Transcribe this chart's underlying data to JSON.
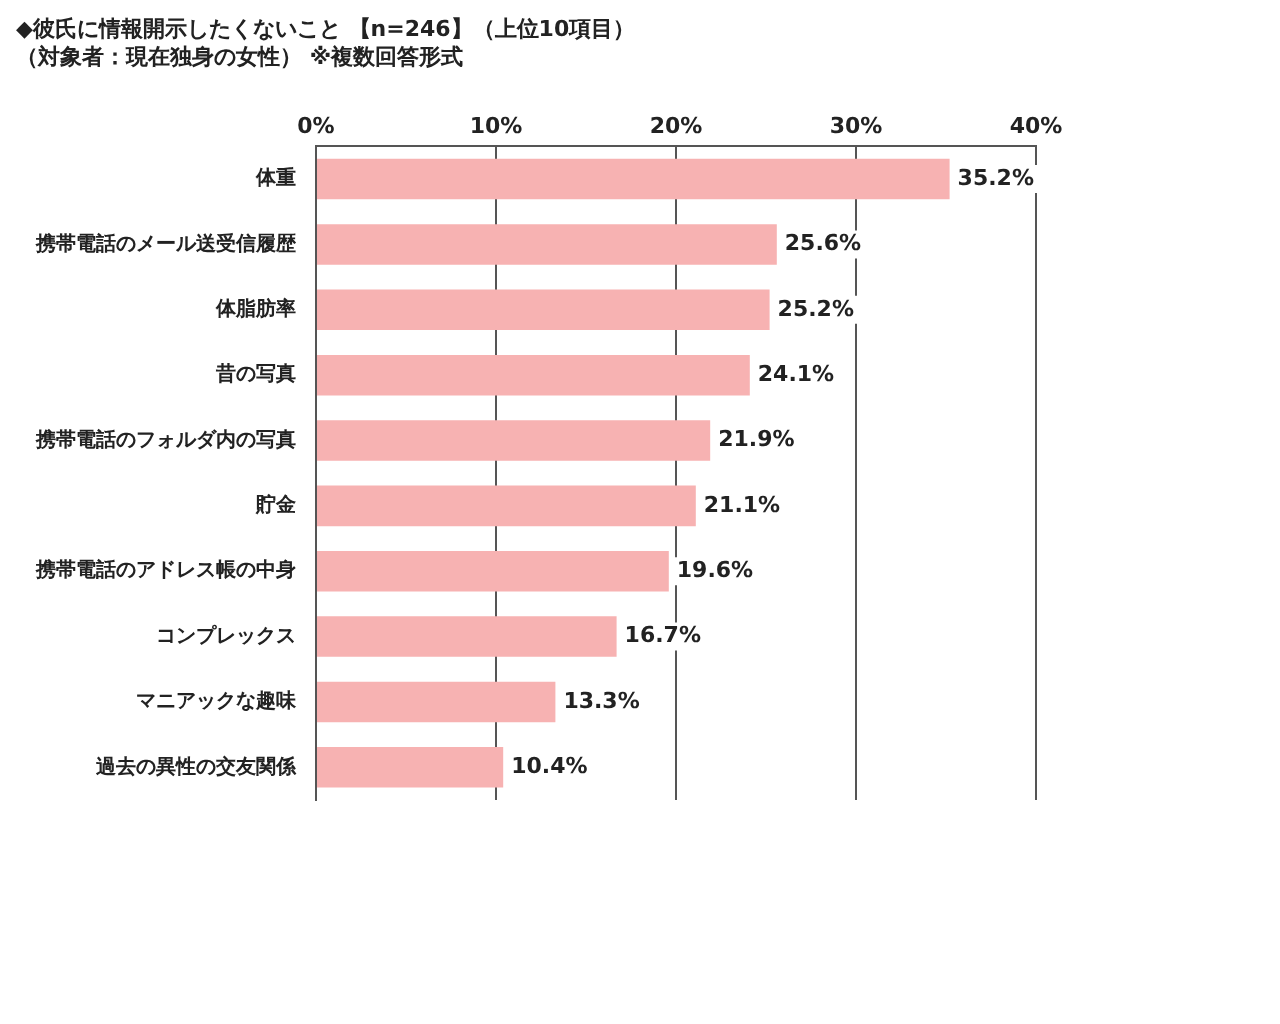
{
  "chart_data": {
    "type": "bar",
    "orientation": "horizontal",
    "title": "◆彼氏に情報開示したくないこと 【n=246】（上位10項目）",
    "subtitle": "（対象者：現在独身の女性） ※複数回答形式",
    "categories": [
      "体重",
      "携帯電話のメール送受信履歴",
      "体脂肪率",
      "昔の写真",
      "携帯電話のフォルダ内の写真",
      "貯金",
      "携帯電話のアドレス帳の中身",
      "コンプレックス",
      "マニアックな趣味",
      "過去の異性の交友関係"
    ],
    "values": [
      35.2,
      25.6,
      25.2,
      24.1,
      21.9,
      21.1,
      19.6,
      16.7,
      13.3,
      10.4
    ],
    "value_labels": [
      "35.2%",
      "25.6%",
      "25.2%",
      "24.1%",
      "21.9%",
      "21.1%",
      "19.6%",
      "16.7%",
      "13.3%",
      "10.4%"
    ],
    "color": "#f7b2b2",
    "xlim": [
      0,
      40
    ],
    "xticks": [
      {
        "value": 0,
        "label": "0%"
      },
      {
        "value": 10,
        "label": "10%"
      },
      {
        "value": 20,
        "label": "20%"
      },
      {
        "value": 30,
        "label": "30%"
      },
      {
        "value": 40,
        "label": "40%"
      }
    ],
    "grid": "x",
    "legend": false
  }
}
